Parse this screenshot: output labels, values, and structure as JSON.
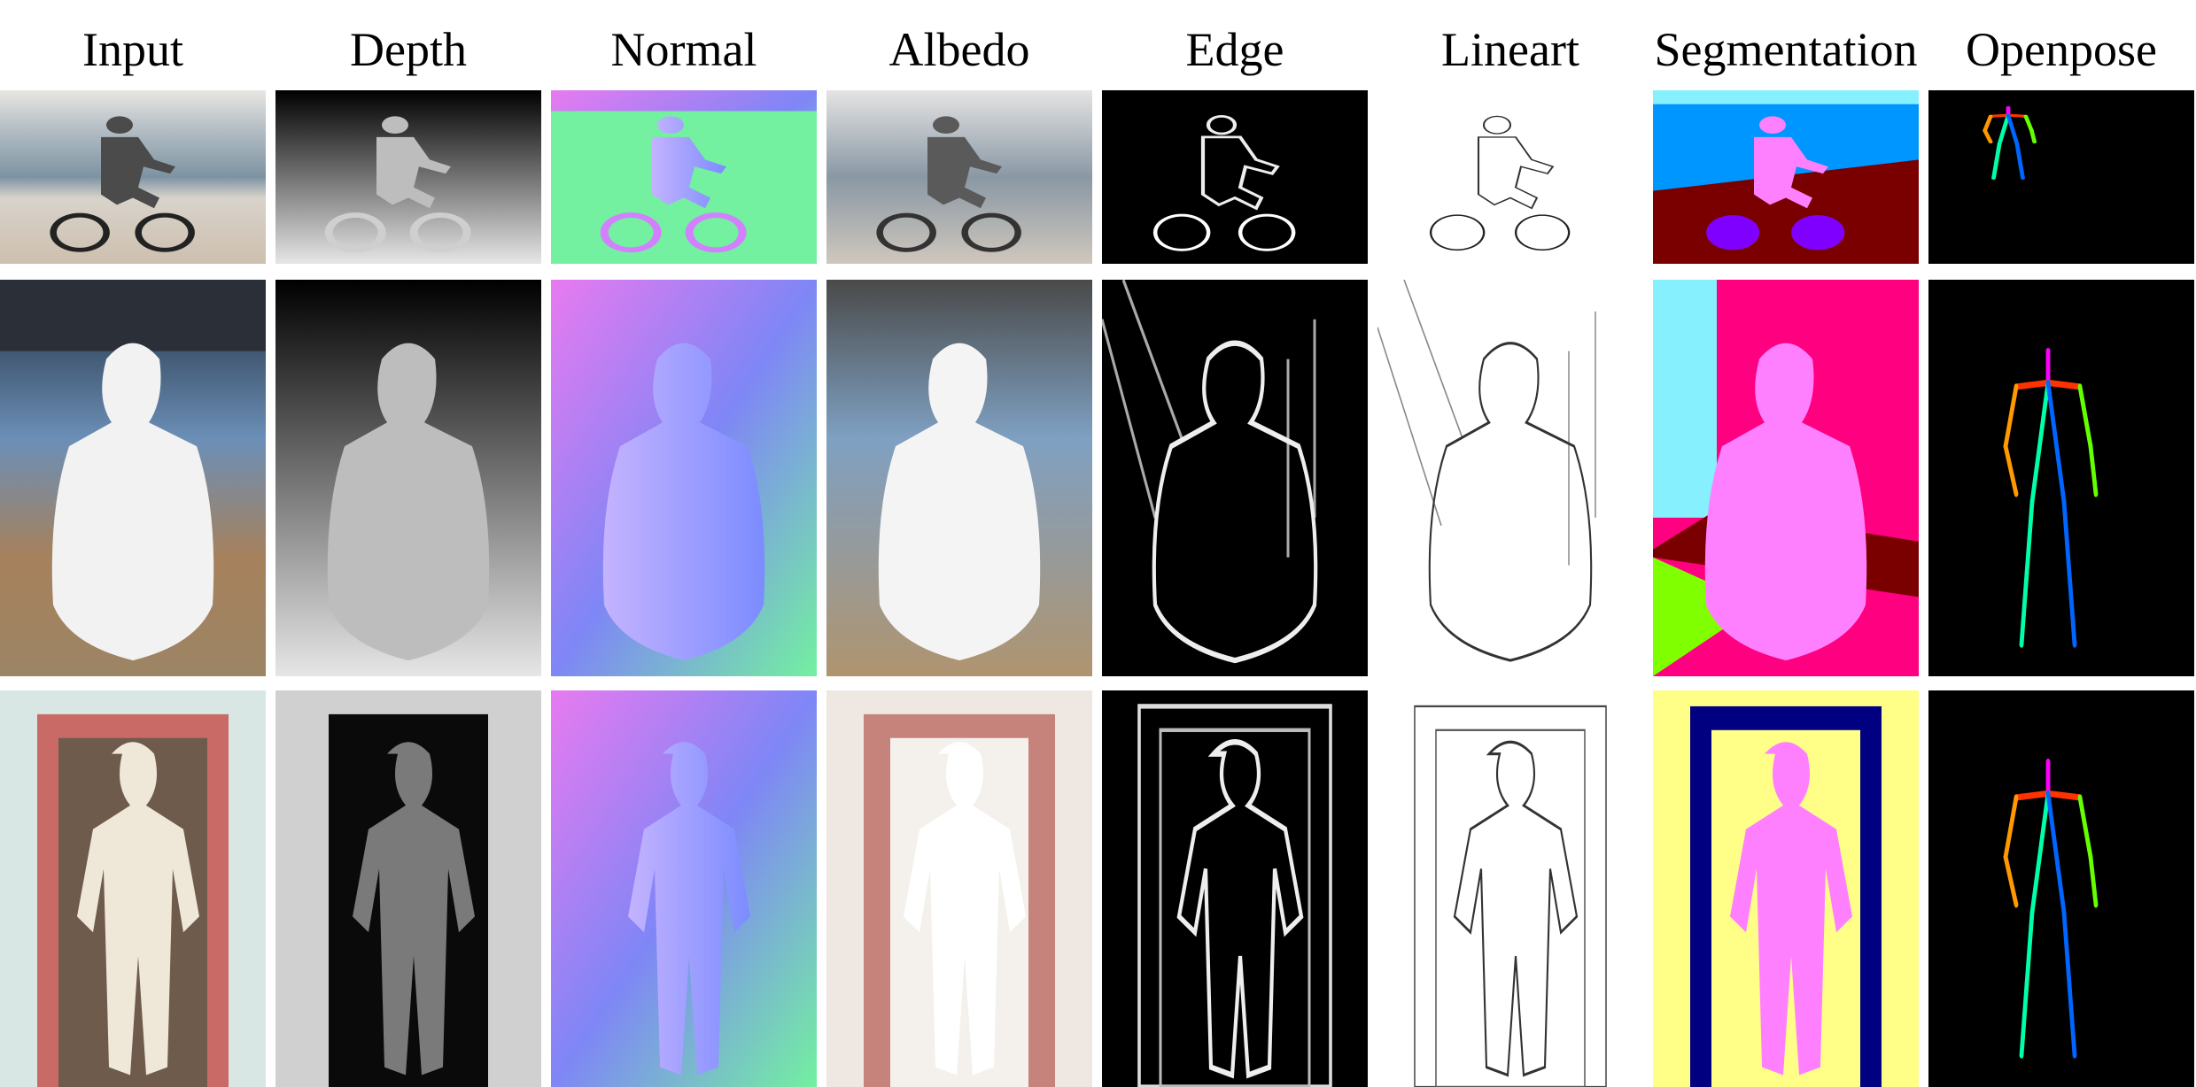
{
  "figure": {
    "columns": [
      {
        "key": "input",
        "label": "Input"
      },
      {
        "key": "depth",
        "label": "Depth"
      },
      {
        "key": "normal",
        "label": "Normal"
      },
      {
        "key": "albedo",
        "label": "Albedo"
      },
      {
        "key": "edge",
        "label": "Edge"
      },
      {
        "key": "lineart",
        "label": "Lineart"
      },
      {
        "key": "segmentation",
        "label": "Segmentation"
      },
      {
        "key": "openpose",
        "label": "Openpose"
      }
    ],
    "rows": [
      {
        "key": "cyclist-beach"
      },
      {
        "key": "woman-under-bridge"
      },
      {
        "key": "man-in-doorway"
      }
    ],
    "palette": {
      "black": "#000000",
      "white": "#ffffff",
      "normal_blue": "#7f86f6",
      "normal_green": "#73f0a0",
      "normal_pink": "#e87af0",
      "seg_sky": "#86f0ff",
      "seg_sea": "#0096ff",
      "seg_ground": "#7a0000",
      "seg_person": "#ff80ff",
      "seg_bike": "#8000ff",
      "seg_building": "#ff0080",
      "seg_grass": "#80ff00",
      "seg_wall": "#ffff88",
      "seg_door": "#000080",
      "pose_head": "#ff00ff",
      "pose_torso": "#ff3300",
      "pose_arm_r": "#ff9900",
      "pose_arm_l": "#66ff00",
      "pose_leg_r": "#0066ff",
      "pose_leg_l": "#00ffaa"
    }
  }
}
